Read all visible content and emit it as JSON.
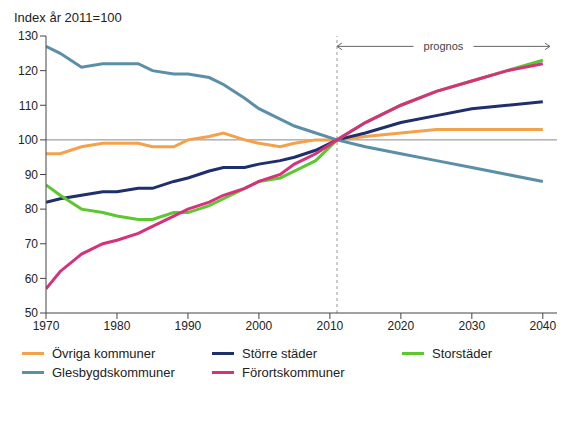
{
  "chart_data": {
    "type": "line",
    "title": "Index  år 2011=100",
    "x": [
      1970,
      1972,
      1975,
      1978,
      1980,
      1983,
      1985,
      1988,
      1990,
      1993,
      1995,
      1998,
      2000,
      2003,
      2005,
      2008,
      2011,
      2015,
      2020,
      2025,
      2030,
      2035,
      2040
    ],
    "xlim": [
      1970,
      2042
    ],
    "xticks": [
      1970,
      1980,
      1990,
      2000,
      2010,
      2020,
      2030,
      2040
    ],
    "ylim": [
      50,
      130
    ],
    "yticks": [
      50,
      60,
      70,
      80,
      90,
      100,
      110,
      120,
      130
    ],
    "grid": false,
    "legend": "bottom",
    "hline": 100,
    "annotations": [
      {
        "text": "prognos",
        "x_start": 2011,
        "x_end": 2041,
        "y": 127
      }
    ],
    "series": [
      {
        "name": "Övriga kommuner",
        "color": "#f4a24a",
        "values": [
          96,
          96,
          98,
          99,
          99,
          99,
          98,
          98,
          100,
          101,
          102,
          100,
          99,
          98,
          99,
          100,
          100,
          101,
          102,
          103,
          103,
          103,
          103
        ]
      },
      {
        "name": "Större städer",
        "color": "#1f2f6b",
        "values": [
          82,
          83,
          84,
          85,
          85,
          86,
          86,
          88,
          89,
          91,
          92,
          92,
          93,
          94,
          95,
          97,
          100,
          102,
          105,
          107,
          109,
          110,
          111
        ]
      },
      {
        "name": "Storstäder",
        "color": "#5cc72e",
        "values": [
          87,
          84,
          80,
          79,
          78,
          77,
          77,
          79,
          79,
          81,
          83,
          86,
          88,
          89,
          91,
          94,
          100,
          105,
          110,
          114,
          117,
          120,
          123
        ]
      },
      {
        "name": "Glesbygdskommuner",
        "color": "#5b8fa8",
        "values": [
          127,
          125,
          121,
          122,
          122,
          122,
          120,
          119,
          119,
          118,
          116,
          112,
          109,
          106,
          104,
          102,
          100,
          98,
          96,
          94,
          92,
          90,
          88
        ]
      },
      {
        "name": "Förortskommuner",
        "color": "#d6317c",
        "values": [
          57,
          62,
          67,
          70,
          71,
          73,
          75,
          78,
          80,
          82,
          84,
          86,
          88,
          90,
          93,
          96,
          100,
          105,
          110,
          114,
          117,
          120,
          122
        ]
      }
    ]
  }
}
